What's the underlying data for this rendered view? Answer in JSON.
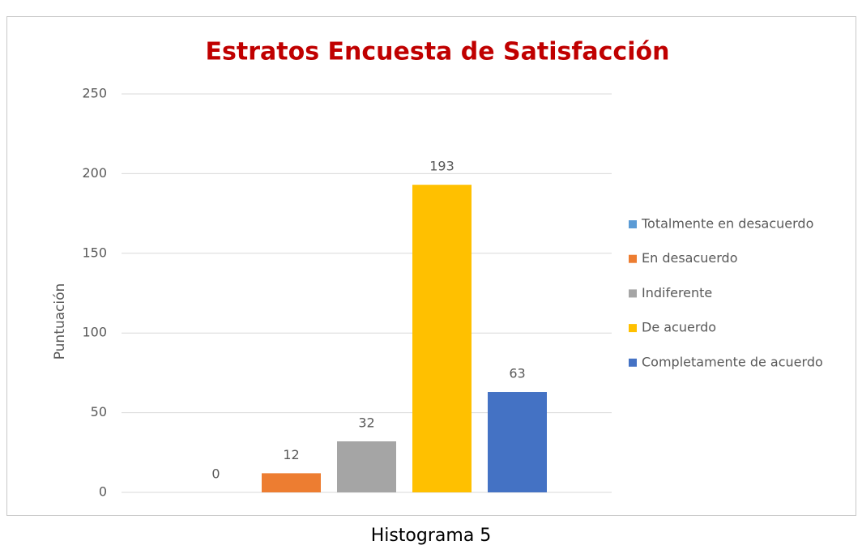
{
  "chart_data": {
    "type": "bar",
    "title": "Estratos Encuesta de Satisfacción",
    "ylabel": "Puntuación",
    "series": [
      {
        "name": "Totalmente en desacuerdo",
        "color": "#5b9bd5",
        "values": [
          0
        ]
      },
      {
        "name": "En desacuerdo",
        "color": "#ed7d31",
        "values": [
          12
        ]
      },
      {
        "name": "Indiferente",
        "color": "#a5a5a5",
        "values": [
          32
        ]
      },
      {
        "name": "De acuerdo",
        "color": "#ffc000",
        "values": [
          193
        ]
      },
      {
        "name": "Completamente de acuerdo",
        "color": "#4472c4",
        "values": [
          63
        ]
      }
    ],
    "ylim": [
      0,
      250
    ],
    "yticks": [
      0,
      50,
      100,
      150,
      200,
      250
    ],
    "grid": true,
    "legend": "right",
    "data_labels": true
  },
  "caption": "Histograma 5"
}
